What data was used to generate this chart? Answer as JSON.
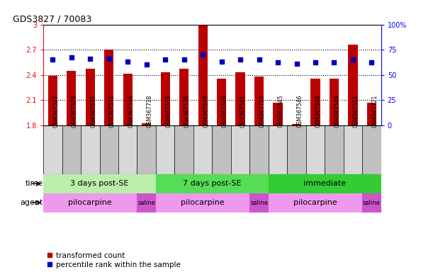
{
  "title": "GDS3827 / 70083",
  "samples": [
    "GSM367527",
    "GSM367528",
    "GSM367531",
    "GSM367532",
    "GSM367534",
    "GSM367718",
    "GSM367536",
    "GSM367538",
    "GSM367539",
    "GSM367540",
    "GSM367541",
    "GSM367719",
    "GSM367545",
    "GSM367546",
    "GSM367548",
    "GSM367549",
    "GSM367551",
    "GSM367721"
  ],
  "transformed_count": [
    2.39,
    2.45,
    2.47,
    2.7,
    2.41,
    1.82,
    2.43,
    2.47,
    2.99,
    2.35,
    2.43,
    2.38,
    2.07,
    1.81,
    2.35,
    2.35,
    2.76,
    2.07
  ],
  "percentile_rank": [
    65,
    67,
    66,
    66,
    63,
    60,
    65,
    65,
    70,
    63,
    65,
    65,
    62,
    61,
    62,
    62,
    65,
    62
  ],
  "ylim_left": [
    1.8,
    3.0
  ],
  "ylim_right": [
    0,
    100
  ],
  "yticks_left": [
    1.8,
    2.1,
    2.4,
    2.7,
    3.0
  ],
  "yticks_left_labels": [
    "1.8",
    "2.1",
    "2.4",
    "2.7",
    "3"
  ],
  "yticks_right": [
    0,
    25,
    50,
    75,
    100
  ],
  "yticks_right_labels": [
    "0",
    "25",
    "50",
    "75",
    "100%"
  ],
  "bar_color": "#bb0000",
  "dot_color": "#0000bb",
  "time_groups": [
    {
      "label": "3 days post-SE",
      "start": 0,
      "end": 6,
      "color": "#bbeeaa"
    },
    {
      "label": "7 days post-SE",
      "start": 6,
      "end": 12,
      "color": "#55dd55"
    },
    {
      "label": "immediate",
      "start": 12,
      "end": 18,
      "color": "#33cc33"
    }
  ],
  "agent_groups": [
    {
      "label": "pilocarpine",
      "start": 0,
      "end": 5,
      "color": "#ee99ee"
    },
    {
      "label": "saline",
      "start": 5,
      "end": 6,
      "color": "#cc55cc"
    },
    {
      "label": "pilocarpine",
      "start": 6,
      "end": 11,
      "color": "#ee99ee"
    },
    {
      "label": "saline",
      "start": 11,
      "end": 12,
      "color": "#cc55cc"
    },
    {
      "label": "pilocarpine",
      "start": 12,
      "end": 17,
      "color": "#ee99ee"
    },
    {
      "label": "saline",
      "start": 17,
      "end": 18,
      "color": "#cc55cc"
    }
  ],
  "label_bg_light": "#d8d8d8",
  "label_bg_dark": "#c0c0c0",
  "legend_tc": "transformed count",
  "legend_pr": "percentile rank within the sample",
  "bar_width": 0.5
}
